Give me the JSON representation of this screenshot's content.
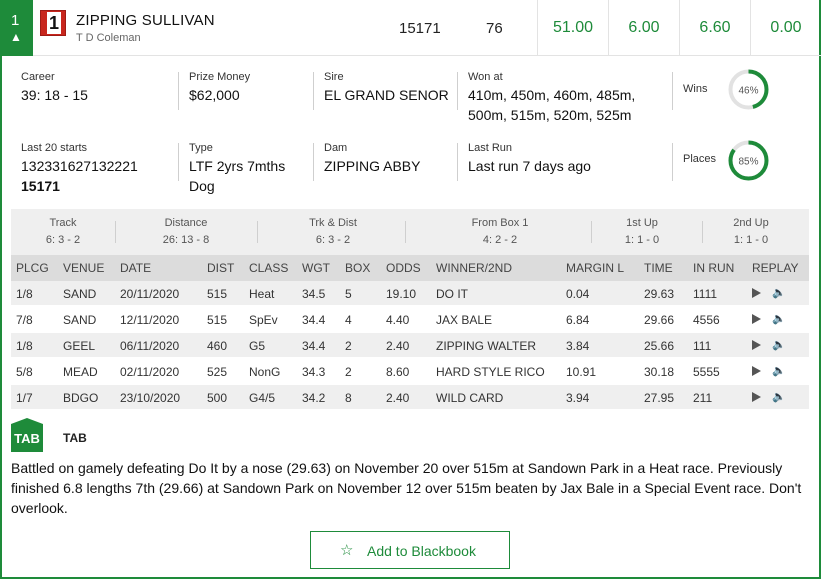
{
  "runner": {
    "number": "1",
    "rug_number": "1",
    "name": "ZIPPING SULLIVAN",
    "trainer": "T D Coleman",
    "form": "15171",
    "rating": "76",
    "odds": [
      "51.00",
      "6.00",
      "6.60",
      "0.00"
    ]
  },
  "stats": {
    "career_label": "Career",
    "career": "39: 18 - 15",
    "prize_label": "Prize Money",
    "prize": "$62,000",
    "sire_label": "Sire",
    "sire": "EL GRAND SENOR",
    "won_at_label": "Won at",
    "won_at_1": "410m, 450m, 460m, 485m,",
    "won_at_2": "500m, 515m, 520m, 525m",
    "wins_label": "Wins",
    "wins_pct": "46%",
    "wins_value": 46,
    "last20_label": "Last 20 starts",
    "last20": "132331627132221",
    "last20_bold": "15171",
    "type_label": "Type",
    "type_1": "LTF 2yrs 7mths",
    "type_2": "Dog",
    "dam_label": "Dam",
    "dam": "ZIPPING ABBY",
    "last_run_label": "Last Run",
    "last_run": "Last run 7 days ago",
    "places_label": "Places",
    "places_pct": "85%",
    "places_value": 85
  },
  "summary": [
    {
      "title": "Track",
      "value": "6: 3 - 2"
    },
    {
      "title": "Distance",
      "value": "26: 13 - 8"
    },
    {
      "title": "Trk & Dist",
      "value": "6: 3 - 2"
    },
    {
      "title": "From Box 1",
      "value": "4: 2 - 2"
    },
    {
      "title": "1st Up",
      "value": "1: 1 - 0"
    },
    {
      "title": "2nd Up",
      "value": "1: 1 - 0"
    }
  ],
  "table": {
    "headers": [
      "PLCG",
      "VENUE",
      "DATE",
      "DIST",
      "CLASS",
      "WGT",
      "BOX",
      "ODDS",
      "WINNER/2ND",
      "MARGIN L",
      "TIME",
      "IN RUN",
      "REPLAY"
    ],
    "rows": [
      [
        "1/8",
        "SAND",
        "20/11/2020",
        "515",
        "Heat",
        "34.5",
        "5",
        "19.10",
        "DO IT",
        "0.04",
        "29.63",
        "1111"
      ],
      [
        "7/8",
        "SAND",
        "12/11/2020",
        "515",
        "SpEv",
        "34.4",
        "4",
        "4.40",
        "JAX BALE",
        "6.84",
        "29.66",
        "4556"
      ],
      [
        "1/8",
        "GEEL",
        "06/11/2020",
        "460",
        "G5",
        "34.4",
        "2",
        "2.40",
        "ZIPPING WALTER",
        "3.84",
        "25.66",
        "111"
      ],
      [
        "5/8",
        "MEAD",
        "02/11/2020",
        "525",
        "NonG",
        "34.3",
        "2",
        "8.60",
        "HARD STYLE RICO",
        "10.91",
        "30.18",
        "5555"
      ],
      [
        "1/7",
        "BDGO",
        "23/10/2020",
        "500",
        "G4/5",
        "34.2",
        "8",
        "2.40",
        "WILD CARD",
        "3.94",
        "27.95",
        "211"
      ]
    ]
  },
  "tab": {
    "logo": "TAB",
    "title": "TAB",
    "comment": "Battled on gamely defeating Do It by a nose (29.63) on November 20 over 515m at Sandown Park in a Heat race. Previously finished 6.8 lengths 7th (29.66) at Sandown Park on November 12 over 515m beaten by Jax Bale in a Special Event race. Don't overlook."
  },
  "blackbook_button": "Add to Blackbook",
  "colors": {
    "accent": "#1e8b3a",
    "rug": "#c8261d"
  },
  "icons": {
    "expand": "chevron-up-icon",
    "replay": "play-icon",
    "audio": "speaker-icon",
    "blackbook": "star-icon"
  }
}
